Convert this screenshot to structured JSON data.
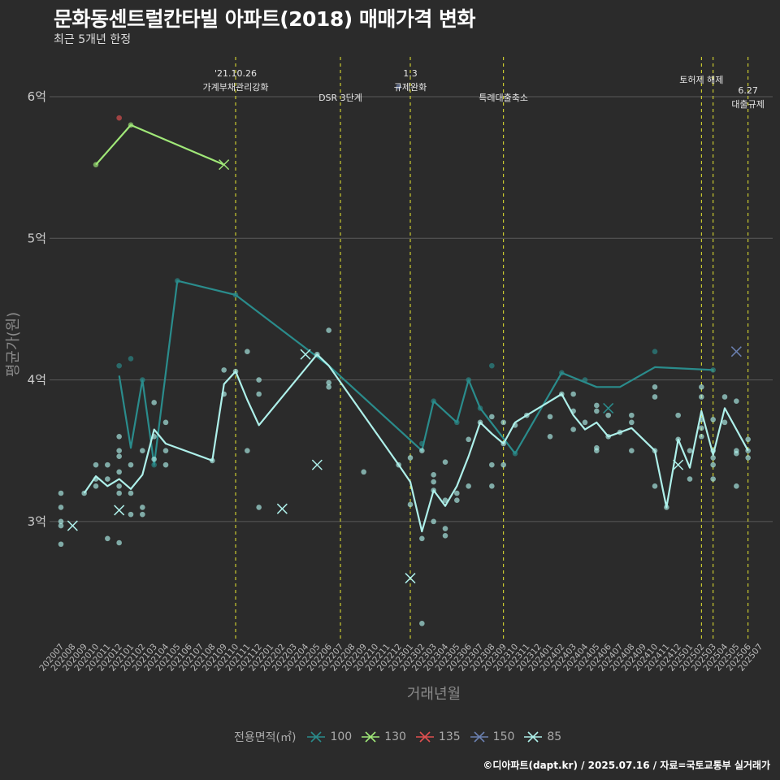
{
  "title": "문화동센트럴칸타빌 아파트(2018) 매매가격 변화",
  "subtitle": "최근 5개년 한정",
  "caption": "©디아파트(dapt.kr) / 2025.07.16 / 자료=국토교통부 실거래가",
  "chart_data": {
    "type": "line",
    "xlabel": "거래년월",
    "ylabel": "평균가(원)",
    "x_ticks": [
      "202007",
      "202008",
      "202009",
      "202010",
      "202011",
      "202012",
      "202101",
      "202102",
      "202103",
      "202104",
      "202105",
      "202106",
      "202107",
      "202108",
      "202109",
      "202110",
      "202111",
      "202112",
      "202201",
      "202202",
      "202203",
      "202204",
      "202205",
      "202206",
      "202207",
      "202208",
      "202209",
      "202210",
      "202211",
      "202212",
      "202301",
      "202302",
      "202303",
      "202304",
      "202305",
      "202306",
      "202307",
      "202308",
      "202309",
      "202310",
      "202311",
      "202312",
      "202401",
      "202402",
      "202403",
      "202404",
      "202405",
      "202406",
      "202407",
      "202408",
      "202409",
      "202410",
      "202411",
      "202412",
      "202501",
      "202502",
      "202503",
      "202504",
      "202505",
      "202506",
      "202507"
    ],
    "y_ticks": [
      {
        "value": 3,
        "label": "3억"
      },
      {
        "value": 4,
        "label": "4억"
      },
      {
        "value": 5,
        "label": "5억"
      },
      {
        "value": 6,
        "label": "6억"
      }
    ],
    "ylim": [
      2.15,
      6.35
    ],
    "grid": "horizontal",
    "legend": {
      "title": "전용면적(㎡)",
      "position": "bottom",
      "entries": [
        "100",
        "130",
        "135",
        "150",
        "85"
      ]
    },
    "series": [
      {
        "name": "100",
        "color": "#2a8c8c",
        "line": [
          [
            "202012",
            4.03
          ],
          [
            "202101",
            3.52
          ],
          [
            "202102",
            4.0
          ],
          [
            "202103",
            3.4
          ],
          [
            "202105",
            4.7
          ],
          [
            "202110",
            4.6
          ],
          [
            "202206",
            4.1
          ],
          [
            "202302",
            3.5
          ],
          [
            "202303",
            3.85
          ],
          [
            "202305",
            3.7
          ],
          [
            "202306",
            4.0
          ],
          [
            "202307",
            3.8
          ],
          [
            "202310",
            3.48
          ],
          [
            "202402",
            4.05
          ],
          [
            "202405",
            3.95
          ],
          [
            "202407",
            3.95
          ],
          [
            "202410",
            4.09
          ],
          [
            "202503",
            4.07
          ]
        ],
        "points": [
          [
            "202012",
            4.1
          ],
          [
            "202101",
            4.15
          ],
          [
            "202102",
            4.0
          ],
          [
            "202103",
            3.4
          ],
          [
            "202105",
            4.7
          ],
          [
            "202110",
            4.6
          ],
          [
            "202302",
            3.55
          ],
          [
            "202303",
            3.85
          ],
          [
            "202305",
            3.7
          ],
          [
            "202306",
            4.0
          ],
          [
            "202307",
            3.8
          ],
          [
            "202308",
            4.1
          ],
          [
            "202310",
            3.48
          ],
          [
            "202402",
            4.05
          ],
          [
            "202404",
            4.0
          ],
          [
            "202410",
            4.2
          ],
          [
            "202503",
            4.07
          ]
        ],
        "cross": [
          [
            "202406",
            3.8
          ]
        ]
      },
      {
        "name": "130",
        "color": "#a0e878",
        "line": [
          [
            "202010",
            5.52
          ],
          [
            "202101",
            5.8
          ],
          [
            "202109",
            5.52
          ]
        ],
        "points": [
          [
            "202010",
            5.52
          ],
          [
            "202101",
            5.8
          ]
        ],
        "cross": [
          [
            "202109",
            5.52
          ]
        ]
      },
      {
        "name": "135",
        "color": "#e05050",
        "line": [],
        "points": [
          [
            "202012",
            5.85
          ]
        ],
        "cross": []
      },
      {
        "name": "150",
        "color": "#6b80b0",
        "line": [],
        "points": [
          [
            "202212",
            6.07
          ]
        ],
        "cross": [
          [
            "202505",
            4.2
          ]
        ]
      },
      {
        "name": "85",
        "color": "#aef0ea",
        "line": [
          [
            "202009",
            3.2
          ],
          [
            "202010",
            3.32
          ],
          [
            "202011",
            3.25
          ],
          [
            "202012",
            3.3
          ],
          [
            "202101",
            3.23
          ],
          [
            "202102",
            3.33
          ],
          [
            "202103",
            3.65
          ],
          [
            "202104",
            3.55
          ],
          [
            "202108",
            3.43
          ],
          [
            "202109",
            3.97
          ],
          [
            "202110",
            4.06
          ],
          [
            "202111",
            3.86
          ],
          [
            "202112",
            3.68
          ],
          [
            "202205",
            4.18
          ],
          [
            "202206",
            4.1
          ],
          [
            "202212",
            3.4
          ],
          [
            "202301",
            3.28
          ],
          [
            "202302",
            2.93
          ],
          [
            "202303",
            3.22
          ],
          [
            "202304",
            3.11
          ],
          [
            "202305",
            3.25
          ],
          [
            "202306",
            3.46
          ],
          [
            "202307",
            3.7
          ],
          [
            "202308",
            3.62
          ],
          [
            "202309",
            3.55
          ],
          [
            "202310",
            3.7
          ],
          [
            "202311",
            3.75
          ],
          [
            "202402",
            3.9
          ],
          [
            "202403",
            3.75
          ],
          [
            "202404",
            3.65
          ],
          [
            "202405",
            3.7
          ],
          [
            "202406",
            3.6
          ],
          [
            "202407",
            3.63
          ],
          [
            "202408",
            3.66
          ],
          [
            "202410",
            3.5
          ],
          [
            "202411",
            3.1
          ],
          [
            "202412",
            3.58
          ],
          [
            "202501",
            3.38
          ],
          [
            "202502",
            3.78
          ],
          [
            "202503",
            3.47
          ],
          [
            "202504",
            3.8
          ],
          [
            "202506",
            3.5
          ]
        ],
        "points": [
          [
            "202007",
            3.2
          ],
          [
            "202007",
            3.1
          ],
          [
            "202007",
            3.0
          ],
          [
            "202007",
            2.97
          ],
          [
            "202007",
            2.84
          ],
          [
            "202009",
            3.2
          ],
          [
            "202010",
            3.4
          ],
          [
            "202010",
            3.3
          ],
          [
            "202010",
            3.25
          ],
          [
            "202011",
            3.4
          ],
          [
            "202011",
            3.3
          ],
          [
            "202011",
            2.88
          ],
          [
            "202012",
            3.6
          ],
          [
            "202012",
            3.5
          ],
          [
            "202012",
            3.46
          ],
          [
            "202012",
            3.35
          ],
          [
            "202012",
            3.25
          ],
          [
            "202012",
            3.2
          ],
          [
            "202012",
            2.85
          ],
          [
            "202101",
            3.4
          ],
          [
            "202101",
            3.2
          ],
          [
            "202101",
            3.05
          ],
          [
            "202102",
            3.5
          ],
          [
            "202102",
            3.1
          ],
          [
            "202102",
            3.05
          ],
          [
            "202103",
            3.84
          ],
          [
            "202103",
            3.6
          ],
          [
            "202103",
            3.44
          ],
          [
            "202104",
            3.7
          ],
          [
            "202104",
            3.5
          ],
          [
            "202104",
            3.4
          ],
          [
            "202108",
            3.43
          ],
          [
            "202109",
            4.07
          ],
          [
            "202109",
            3.9
          ],
          [
            "202110",
            4.06
          ],
          [
            "202111",
            4.2
          ],
          [
            "202111",
            3.5
          ],
          [
            "202112",
            4.0
          ],
          [
            "202112",
            3.9
          ],
          [
            "202112",
            3.1
          ],
          [
            "202205",
            4.18
          ],
          [
            "202206",
            4.35
          ],
          [
            "202206",
            3.98
          ],
          [
            "202206",
            3.95
          ],
          [
            "202209",
            3.35
          ],
          [
            "202212",
            3.4
          ],
          [
            "202301",
            3.45
          ],
          [
            "202301",
            3.12
          ],
          [
            "202302",
            3.5
          ],
          [
            "202302",
            2.88
          ],
          [
            "202302",
            2.28
          ],
          [
            "202303",
            3.33
          ],
          [
            "202303",
            3.28
          ],
          [
            "202303",
            3.22
          ],
          [
            "202303",
            3.0
          ],
          [
            "202304",
            3.42
          ],
          [
            "202304",
            3.15
          ],
          [
            "202304",
            2.95
          ],
          [
            "202304",
            2.9
          ],
          [
            "202305",
            3.2
          ],
          [
            "202305",
            3.15
          ],
          [
            "202306",
            3.58
          ],
          [
            "202306",
            3.25
          ],
          [
            "202307",
            3.7
          ],
          [
            "202308",
            3.74
          ],
          [
            "202308",
            3.4
          ],
          [
            "202308",
            3.25
          ],
          [
            "202309",
            3.7
          ],
          [
            "202309",
            3.55
          ],
          [
            "202309",
            3.4
          ],
          [
            "202310",
            3.68
          ],
          [
            "202311",
            3.75
          ],
          [
            "202401",
            3.74
          ],
          [
            "202401",
            3.6
          ],
          [
            "202402",
            3.9
          ],
          [
            "202403",
            3.9
          ],
          [
            "202403",
            3.78
          ],
          [
            "202403",
            3.65
          ],
          [
            "202404",
            3.7
          ],
          [
            "202405",
            3.82
          ],
          [
            "202405",
            3.78
          ],
          [
            "202405",
            3.52
          ],
          [
            "202405",
            3.5
          ],
          [
            "202406",
            3.75
          ],
          [
            "202406",
            3.6
          ],
          [
            "202407",
            3.63
          ],
          [
            "202408",
            3.75
          ],
          [
            "202408",
            3.7
          ],
          [
            "202408",
            3.5
          ],
          [
            "202410",
            3.95
          ],
          [
            "202410",
            3.88
          ],
          [
            "202410",
            3.5
          ],
          [
            "202410",
            3.25
          ],
          [
            "202411",
            3.1
          ],
          [
            "202412",
            3.75
          ],
          [
            "202412",
            3.58
          ],
          [
            "202501",
            3.5
          ],
          [
            "202501",
            3.3
          ],
          [
            "202502",
            3.95
          ],
          [
            "202502",
            3.88
          ],
          [
            "202502",
            3.72
          ],
          [
            "202502",
            3.66
          ],
          [
            "202502",
            3.6
          ],
          [
            "202503",
            3.72
          ],
          [
            "202503",
            3.5
          ],
          [
            "202503",
            3.45
          ],
          [
            "202503",
            3.4
          ],
          [
            "202503",
            3.3
          ],
          [
            "202504",
            3.88
          ],
          [
            "202504",
            3.7
          ],
          [
            "202505",
            3.85
          ],
          [
            "202505",
            3.5
          ],
          [
            "202505",
            3.48
          ],
          [
            "202505",
            3.25
          ],
          [
            "202506",
            3.58
          ],
          [
            "202506",
            3.5
          ],
          [
            "202506",
            3.45
          ]
        ],
        "cross": [
          [
            "202008",
            2.97
          ],
          [
            "202012",
            3.08
          ],
          [
            "202202",
            3.09
          ],
          [
            "202204",
            4.18
          ],
          [
            "202205",
            3.4
          ],
          [
            "202301",
            2.6
          ],
          [
            "202412",
            3.4
          ]
        ]
      }
    ],
    "events": [
      {
        "month": "202110",
        "lines": [
          "'21.10.26",
          "가계부채관리강화"
        ]
      },
      {
        "month": "202207",
        "lines": [
          "DSR 3단계"
        ]
      },
      {
        "month": "202301",
        "lines": [
          "1.3",
          "규제완화"
        ]
      },
      {
        "month": "202309",
        "lines": [
          "특례대출축소"
        ]
      },
      {
        "month": "202502",
        "lines": [
          "토허제 해제"
        ]
      },
      {
        "month": "202503",
        "lines": [
          ""
        ]
      },
      {
        "month": "202506",
        "lines": [
          "6.27",
          "대출규제"
        ]
      }
    ]
  }
}
